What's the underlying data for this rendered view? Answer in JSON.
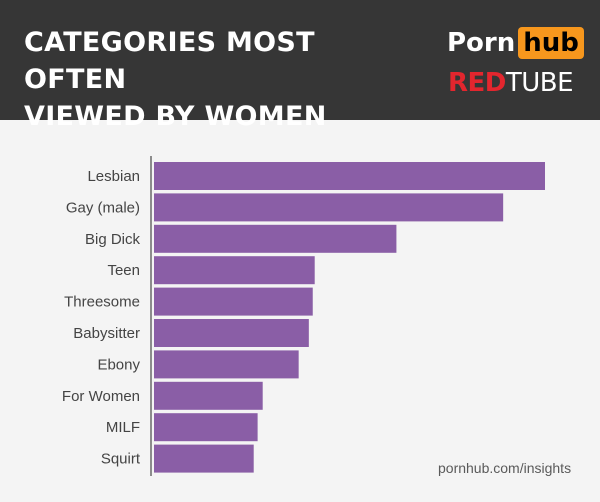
{
  "header": {
    "title_line1": "CATEGORIES MOST OFTEN",
    "title_line2": "VIEWED BY WOMEN",
    "brand_primary_a": "Porn",
    "brand_primary_b": "hub",
    "brand_secondary_a": "RED",
    "brand_secondary_b": "TUBE"
  },
  "footer": {
    "source": "pornhub.com/insights"
  },
  "colors": {
    "bar": "#8a5ea6",
    "header_bg": "#363636",
    "accent_orange": "#f7971d",
    "accent_red": "#e3262e"
  },
  "chart_data": {
    "type": "bar",
    "orientation": "horizontal",
    "categories": [
      "Lesbian",
      "Gay (male)",
      "Big Dick",
      "Teen",
      "Threesome",
      "Babysitter",
      "Ebony",
      "For Women",
      "MILF",
      "Squirt"
    ],
    "values": [
      100,
      89.3,
      62.0,
      41.1,
      40.6,
      39.6,
      37.0,
      27.8,
      26.5,
      25.5
    ],
    "title": "",
    "xlabel": "",
    "ylabel": "",
    "xlim": [
      0,
      100
    ],
    "grid": false,
    "legend": "none"
  }
}
